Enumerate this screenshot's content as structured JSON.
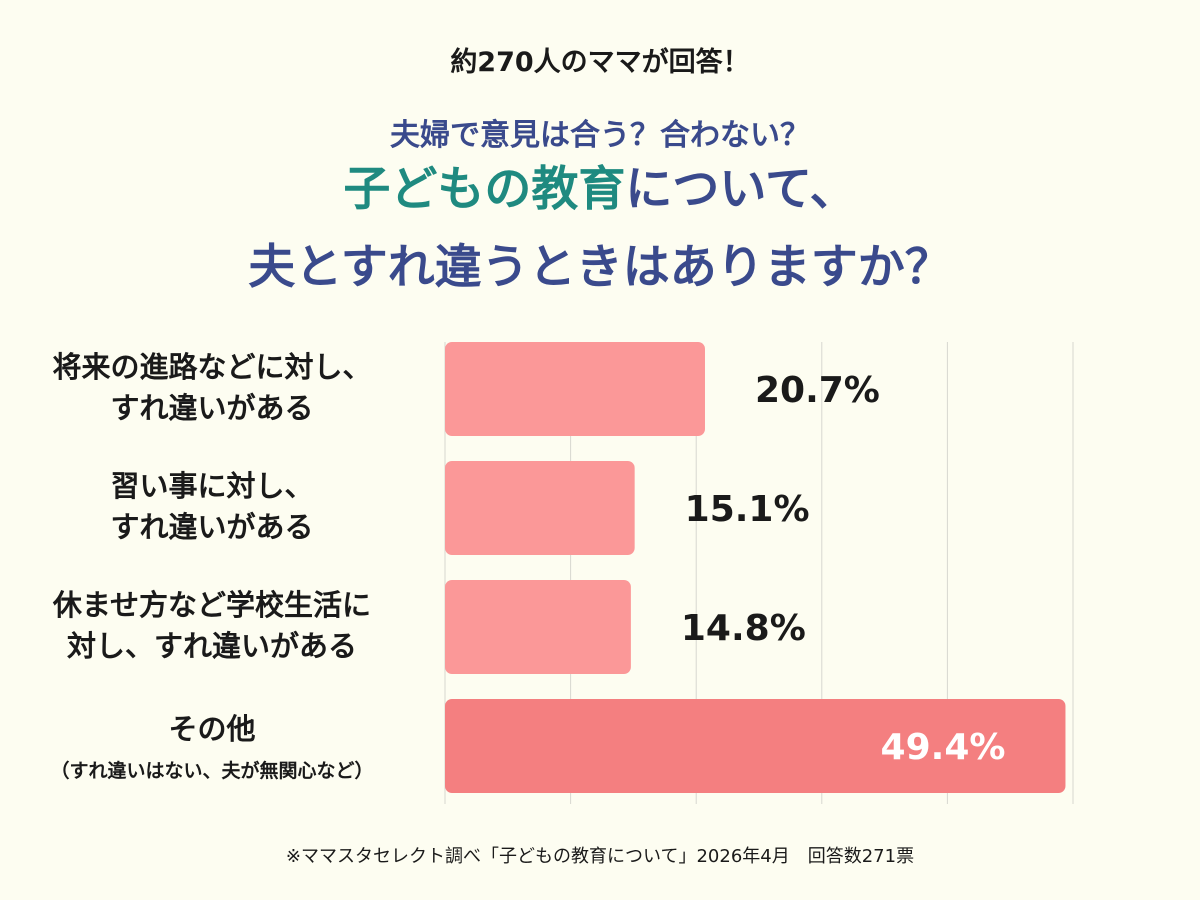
{
  "header": {
    "lead": "約270人のママが回答！",
    "subtitle": "夫婦で意見は合う？合わない？",
    "title_highlight": "子どもの教育",
    "title_rest": "について、",
    "title_line2": "夫とすれ違うときはありますか？"
  },
  "footer": {
    "source": "※ママスタセレクト調べ「子どもの教育について」2026年4月　回答数271票"
  },
  "colors": {
    "bar": "#fb9898",
    "bar_highlight": "#f47f80",
    "accent_teal": "#1f8a80",
    "accent_navy": "#3a4a8c"
  },
  "chart_data": {
    "type": "bar",
    "orientation": "horizontal",
    "unit": "%",
    "xlim": [
      0,
      50
    ],
    "grid": true,
    "categories": [
      {
        "lines": [
          "将来の進路などに対し、",
          "すれ違いがある"
        ],
        "sublabel": ""
      },
      {
        "lines": [
          "習い事に対し、",
          "すれ違いがある"
        ],
        "sublabel": ""
      },
      {
        "lines": [
          "休ませ方など学校生活に",
          "対し、すれ違いがある"
        ],
        "sublabel": ""
      },
      {
        "lines": [
          "その他"
        ],
        "sublabel": "（すれ違いはない、夫が無関心など）"
      }
    ],
    "values": [
      20.7,
      15.1,
      14.8,
      49.4
    ],
    "value_labels": [
      "20.7%",
      "15.1%",
      "14.8%",
      "49.4%"
    ],
    "highlight_index": 3
  }
}
